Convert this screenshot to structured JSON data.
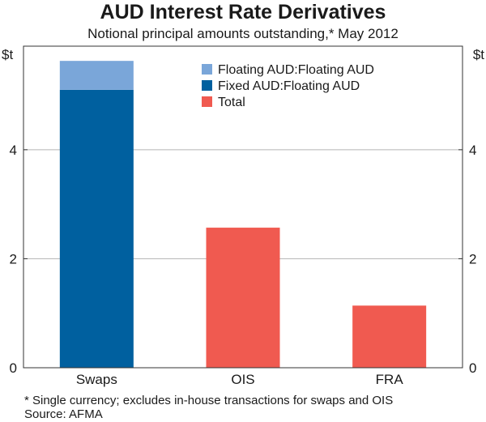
{
  "chart_data": {
    "type": "bar",
    "title": "AUD Interest Rate Derivatives",
    "subtitle": "Notional principal amounts outstanding,* May 2012",
    "ylabel_left": "$t",
    "ylabel_right": "$t",
    "ylim": [
      0,
      5.9
    ],
    "yticks": [
      0,
      2,
      4
    ],
    "categories": [
      "Swaps",
      "OIS",
      "FRA"
    ],
    "series": [
      {
        "name": "Fixed AUD:Floating AUD",
        "color": "#00609f",
        "values": [
          5.1,
          null,
          null
        ]
      },
      {
        "name": "Floating AUD:Floating AUD",
        "color": "#7aa6d9",
        "values": [
          0.53,
          null,
          null
        ]
      },
      {
        "name": "Total",
        "color": "#f05a50",
        "values": [
          null,
          2.57,
          1.14
        ]
      }
    ],
    "legend_order": [
      "Floating AUD:Floating AUD",
      "Fixed AUD:Floating AUD",
      "Total"
    ],
    "legend_position": "top-right",
    "grid": true
  },
  "notes": {
    "footnote": "*   Single currency; excludes in-house transactions for swaps and OIS",
    "source": "Source: AFMA"
  }
}
